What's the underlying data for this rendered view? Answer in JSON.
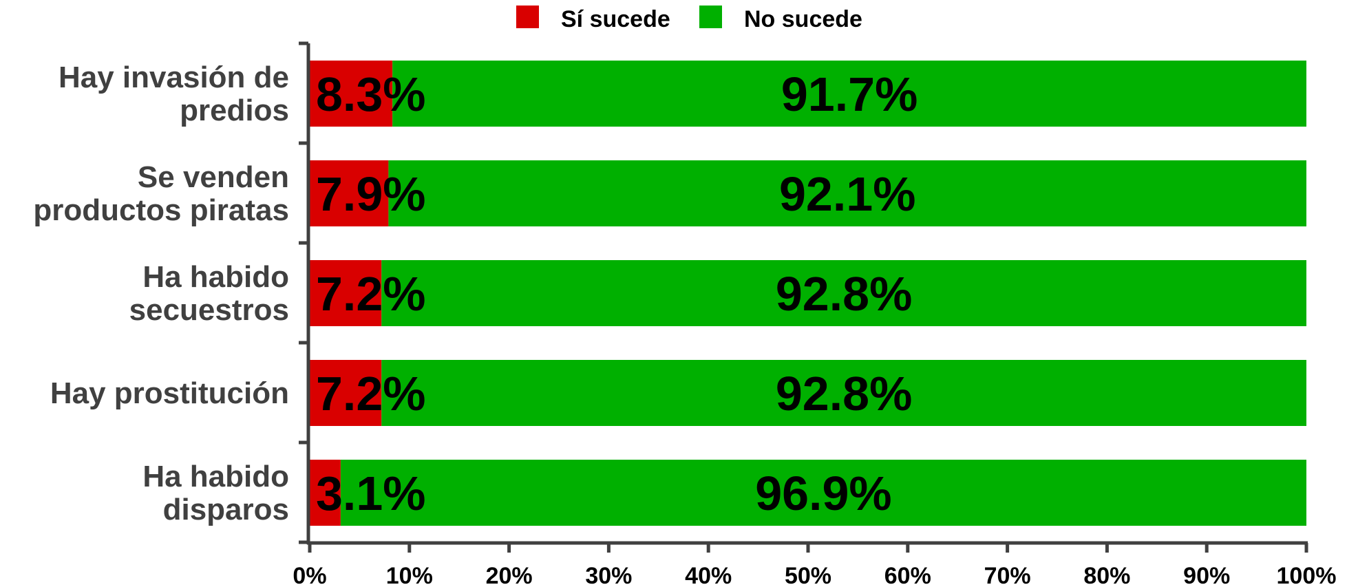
{
  "chart_data": {
    "type": "bar",
    "orientation": "horizontal",
    "stacked": true,
    "title": "",
    "xlabel": "",
    "ylabel": "",
    "xlim": [
      0,
      100
    ],
    "grid": false,
    "legend_position": "top-center",
    "categories": [
      [
        "Hay invasión de",
        "predios"
      ],
      [
        "Se venden",
        "productos piratas"
      ],
      [
        "Ha habido",
        "secuestros"
      ],
      [
        "Hay prostitución"
      ],
      [
        "Ha habido",
        "disparos"
      ]
    ],
    "x_ticks": [
      "0%",
      "10%",
      "20%",
      "30%",
      "40%",
      "50%",
      "60%",
      "70%",
      "80%",
      "90%",
      "100%"
    ],
    "series": [
      {
        "name": "Sí sucede",
        "color": "#d90000",
        "values": [
          8.3,
          7.9,
          7.2,
          7.2,
          3.1
        ],
        "labels": [
          "8.3%",
          "7.9%",
          "7.2%",
          "7.2%",
          "3.1%"
        ]
      },
      {
        "name": "No sucede",
        "color": "#00b000",
        "values": [
          91.7,
          92.1,
          92.8,
          92.8,
          96.9
        ],
        "labels": [
          "91.7%",
          "92.1%",
          "92.8%",
          "92.8%",
          "96.9%"
        ]
      }
    ]
  }
}
